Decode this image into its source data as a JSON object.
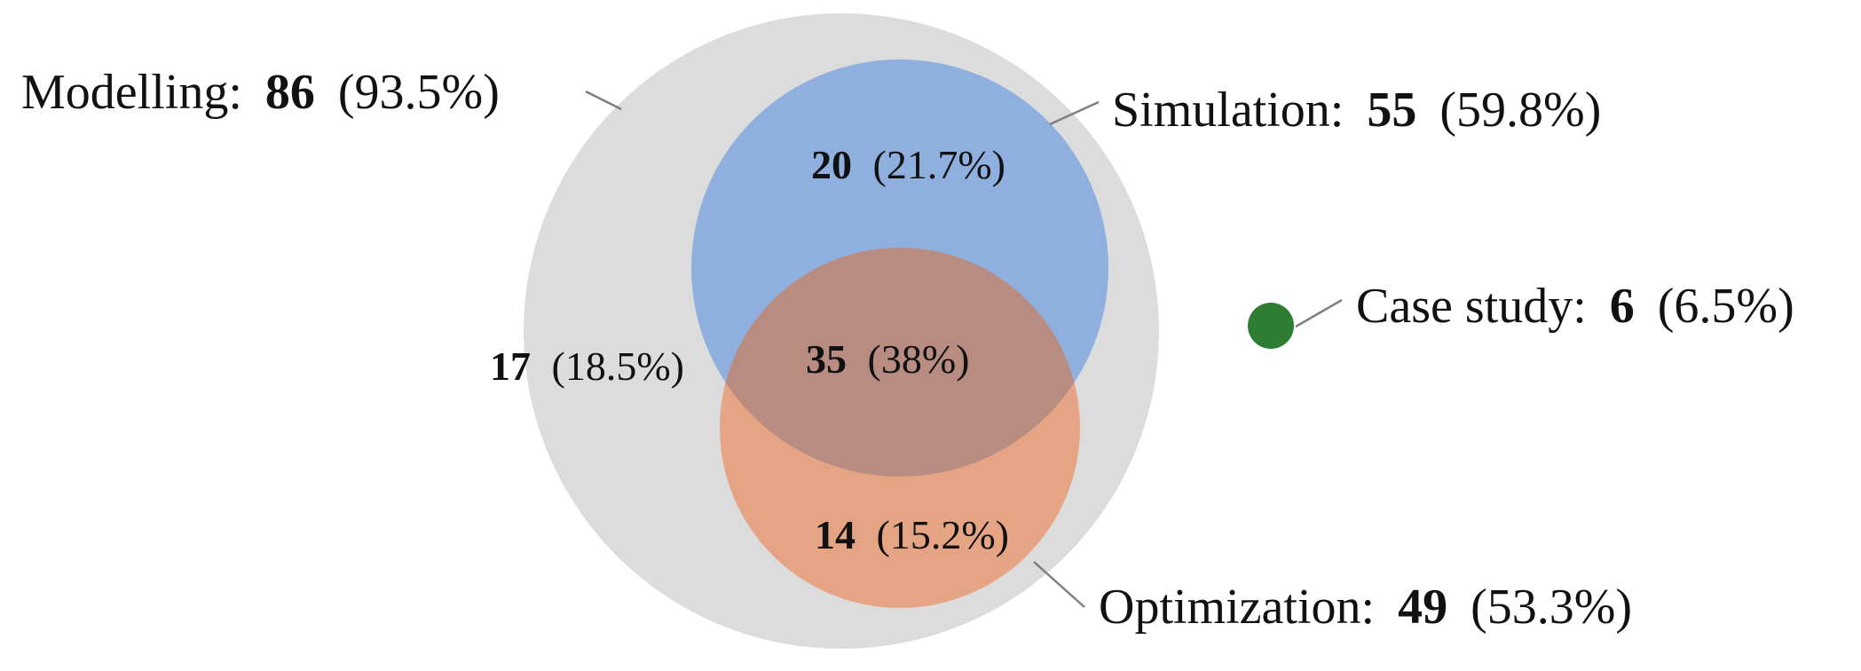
{
  "colors": {
    "modelling": "#dcdcdc",
    "simulation": "#8fb0df",
    "optimization": "#e5a585",
    "overlap": "#b98c82",
    "case_study": "#2e7d32",
    "leader": "#7f7f7f"
  },
  "sets": {
    "modelling": {
      "name": "Modelling:",
      "count": "86",
      "percent": "(93.5%)"
    },
    "simulation": {
      "name": "Simulation:",
      "count": "55",
      "percent": "(59.8%)"
    },
    "optimization": {
      "name": "Optimization:",
      "count": "49",
      "percent": "(53.3%)"
    },
    "case_study": {
      "name": "Case study:",
      "count": "6",
      "percent": "(6.5%)"
    }
  },
  "regions": {
    "modelling_only": {
      "count": "17",
      "percent": "(18.5%)"
    },
    "simulation_only": {
      "count": "20",
      "percent": "(21.7%)"
    },
    "simulation_and_optimization": {
      "count": "35",
      "percent": "(38%)"
    },
    "optimization_only": {
      "count": "14",
      "percent": "(15.2%)"
    }
  }
}
